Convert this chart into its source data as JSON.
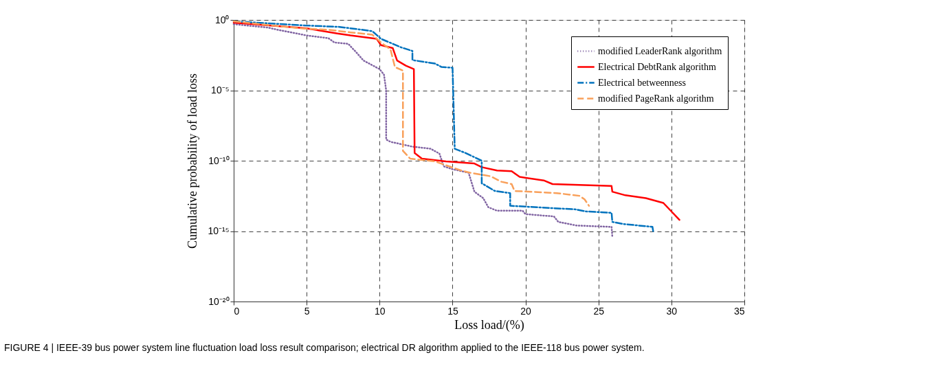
{
  "chart_data": {
    "type": "line",
    "xlabel": "Loss load/(%)",
    "ylabel": "Cumulative probability of load loss",
    "log": "y",
    "grid": true,
    "legend": "top right",
    "marker": "none",
    "xlim": [
      0,
      35
    ],
    "xticks": [
      0,
      5,
      10,
      15,
      20,
      25,
      30,
      35
    ],
    "ylim": [
      1e-20,
      1
    ],
    "yticks": [
      {
        "value": 1e-20,
        "label": "10⁻²⁰"
      },
      {
        "value": 1e-15,
        "label": "10⁻¹⁵"
      },
      {
        "value": 1e-10,
        "label": "10⁻¹⁰"
      },
      {
        "value": 1e-05,
        "label": "10⁻⁵"
      },
      {
        "value": 1,
        "label": "10⁰"
      }
    ],
    "annotations": [
      "FIGURE 4 | IEEE-39 bus power system line fluctuation load loss result comparison; electrical DR algorithm applied to the IEEE-118 bus power system."
    ],
    "series": [
      {
        "name": "modified LeaderRank algorithm",
        "color": "#8064a2",
        "line_style": "dotted",
        "x": [
          0,
          2.4,
          3.0,
          5.0,
          6.5,
          6.9,
          7.85,
          8.4,
          8.9,
          10.0,
          10.3,
          10.45,
          10.45,
          10.75,
          12.25,
          13.5,
          14.1,
          14.4,
          15.0,
          16.1,
          16.5,
          17.1,
          17.45,
          18.05,
          19.8,
          20.0,
          21.95,
          22.25,
          23.5,
          25.9,
          25.95
        ],
        "values": [
          0.5,
          0.28,
          0.2,
          0.079,
          0.05,
          0.025,
          0.02,
          0.005,
          0.0013,
          0.00032,
          0.00013,
          1e-05,
          3.2e-09,
          2.2e-09,
          1e-09,
          7.1e-10,
          3.2e-10,
          4e-11,
          2.5e-11,
          1.4e-11,
          6.3e-13,
          2.2e-13,
          5e-14,
          2.8e-14,
          2.8e-14,
          1.6e-14,
          1.1e-14,
          4.5e-15,
          2.5e-15,
          2e-15,
          4e-16
        ]
      },
      {
        "name": "Electrical DebtRank algorithm",
        "color": "#ff0000",
        "line_style": "solid",
        "x": [
          0,
          5.0,
          7.1,
          8.0,
          9.8,
          10.1,
          10.9,
          11.2,
          11.8,
          12.35,
          12.4,
          12.9,
          14.55,
          16.5,
          17.0,
          18.05,
          19.05,
          19.6,
          21.25,
          21.85,
          25.9,
          25.95,
          26.85,
          28.25,
          29.45,
          30.55
        ],
        "values": [
          0.63,
          0.25,
          0.11,
          0.079,
          0.045,
          0.016,
          0.01,
          0.0013,
          0.00056,
          0.00032,
          3.5e-10,
          1.4e-10,
          8.9e-11,
          6.3e-11,
          3.5e-11,
          2e-11,
          1.8e-11,
          7.1e-12,
          4e-12,
          2.2e-12,
          1.6e-12,
          6.3e-13,
          3.5e-13,
          2.2e-13,
          1e-13,
          6.3e-15
        ]
      },
      {
        "name": "Electrical betweenness",
        "color": "#0072bd",
        "line_style": "dashdot",
        "x": [
          0,
          5.0,
          7.25,
          9.5,
          10.1,
          11.5,
          12.25,
          12.25,
          13.8,
          14.25,
          15.0,
          15.15,
          15.9,
          17.0,
          17.0,
          17.9,
          18.95,
          18.95,
          23.4,
          24.15,
          25.9,
          25.95,
          26.7,
          28.7,
          28.75
        ],
        "values": [
          0.79,
          0.4,
          0.32,
          0.16,
          0.045,
          0.011,
          0.0063,
          0.0014,
          0.00079,
          0.00045,
          0.0004,
          7.1e-10,
          3.5e-10,
          1e-10,
          2.5e-12,
          7.1e-13,
          5e-13,
          6.3e-14,
          3.5e-14,
          2.5e-14,
          2e-14,
          4.5e-15,
          3.2e-15,
          2e-15,
          1e-15
        ]
      },
      {
        "name": "modified PageRank algorithm",
        "color": "#f9a05a",
        "line_style": "dashed",
        "x": [
          0,
          4.6,
          6.5,
          8.0,
          9.5,
          10.1,
          10.75,
          11.05,
          11.6,
          11.6,
          12.1,
          13.8,
          15.6,
          16.2,
          17.6,
          18.35,
          19.05,
          19.25,
          22.15,
          23.7,
          24.05,
          24.35
        ],
        "values": [
          0.79,
          0.25,
          0.2,
          0.13,
          0.089,
          0.025,
          0.0079,
          0.00045,
          0.00025,
          5e-10,
          1.4e-10,
          8.9e-11,
          2e-11,
          1.4e-11,
          7.9e-12,
          3.2e-12,
          2.2e-12,
          7.1e-13,
          5e-13,
          3.2e-13,
          1.8e-13,
          6.3e-14
        ]
      }
    ]
  }
}
